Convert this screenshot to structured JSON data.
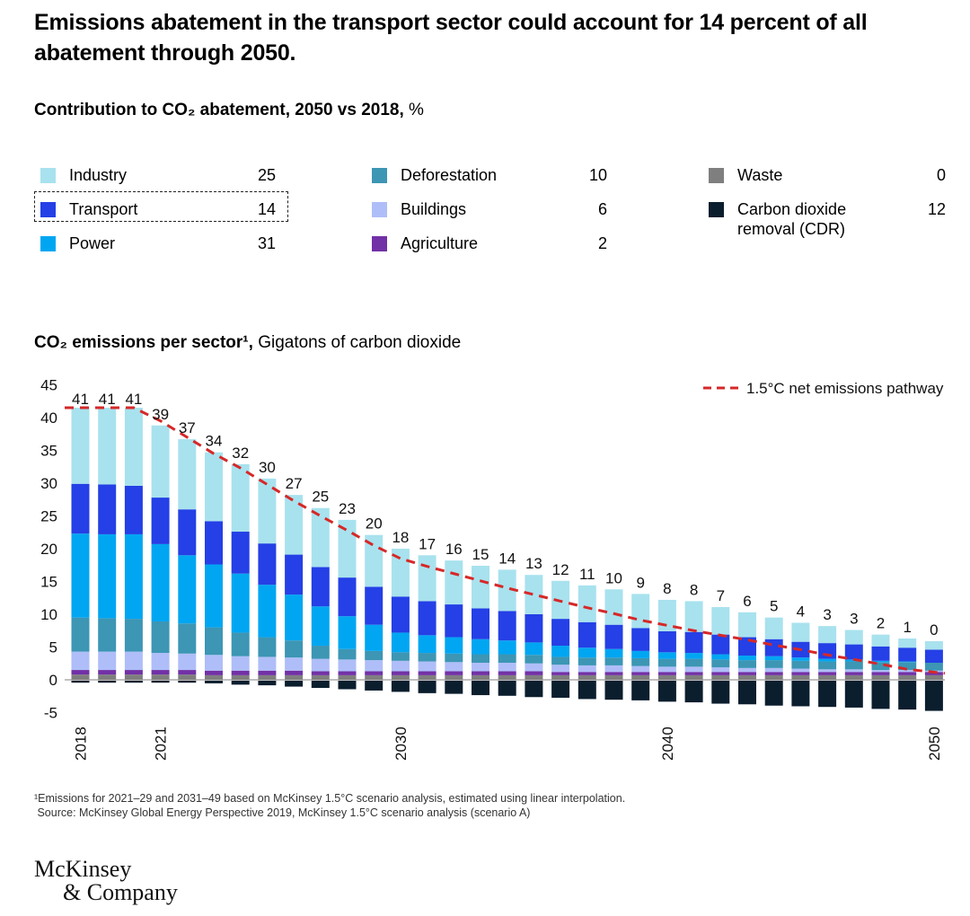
{
  "title": "Emissions abatement in the transport sector could account for 14 percent of all abatement through 2050.",
  "subtitle": {
    "bold": "Contribution to CO₂ abatement, 2050 vs 2018,",
    "unit": " %"
  },
  "legend": [
    {
      "label": "Industry",
      "value": "25",
      "color": "#a8e2ee"
    },
    {
      "label": "Transport",
      "value": "14",
      "color": "#2440e6"
    },
    {
      "label": "Power",
      "value": "31",
      "color": "#00a6f2"
    },
    {
      "label": "Deforestation",
      "value": "10",
      "color": "#3c96b4"
    },
    {
      "label": "Buildings",
      "value": "6",
      "color": "#afbef8"
    },
    {
      "label": "Agriculture",
      "value": "2",
      "color": "#7231a6"
    },
    {
      "label": "Waste",
      "value": "0",
      "color": "#7f7f7f"
    },
    {
      "label": "Carbon dioxide removal (CDR)",
      "value": "12",
      "color": "#0b1e2e"
    }
  ],
  "chart_subtitle": {
    "bold": "CO₂ emissions per sector¹,",
    "unit": " Gigatons of carbon dioxide"
  },
  "chart_data": {
    "type": "bar",
    "stacked": true,
    "title": "CO₂ emissions per sector¹, Gigatons of carbon dioxide",
    "categories": [
      "2018",
      "2019",
      "2020",
      "2021",
      "2022",
      "2023",
      "2024",
      "2025",
      "2026",
      "2027",
      "2028",
      "2029",
      "2030",
      "2031",
      "2032",
      "2033",
      "2034",
      "2035",
      "2036",
      "2037",
      "2038",
      "2039",
      "2040",
      "2041",
      "2042",
      "2043",
      "2044",
      "2045",
      "2046",
      "2047",
      "2048",
      "2049",
      "2050"
    ],
    "x_tick_labels": [
      "2018",
      "2021",
      "2030",
      "2040",
      "2050"
    ],
    "ylim": [
      -5,
      45
    ],
    "y_ticks": [
      -5,
      0,
      5,
      10,
      15,
      20,
      25,
      30,
      35,
      40,
      45
    ],
    "totals": [
      "41",
      "41",
      "41",
      "39",
      "37",
      "34",
      "32",
      "30",
      "27",
      "25",
      "23",
      "20",
      "18",
      "17",
      "16",
      "15",
      "14",
      "13",
      "12",
      "11",
      "10",
      "9",
      "8",
      "8",
      "7",
      "6",
      "5",
      "4",
      "3",
      "3",
      "2",
      "1",
      "0"
    ],
    "series": [
      {
        "name": "Waste",
        "values": [
          0.8,
          0.8,
          0.8,
          0.8,
          0.8,
          0.7,
          0.7,
          0.7,
          0.7,
          0.7,
          0.7,
          0.7,
          0.7,
          0.7,
          0.7,
          0.7,
          0.7,
          0.7,
          0.7,
          0.7,
          0.7,
          0.7,
          0.7,
          0.7,
          0.7,
          0.7,
          0.7,
          0.7,
          0.7,
          0.7,
          0.7,
          0.7,
          0.7
        ]
      },
      {
        "name": "Agriculture",
        "values": [
          0.7,
          0.7,
          0.7,
          0.7,
          0.7,
          0.7,
          0.7,
          0.7,
          0.7,
          0.6,
          0.6,
          0.6,
          0.6,
          0.6,
          0.6,
          0.6,
          0.6,
          0.6,
          0.5,
          0.5,
          0.5,
          0.5,
          0.5,
          0.5,
          0.5,
          0.5,
          0.5,
          0.5,
          0.5,
          0.5,
          0.5,
          0.5,
          0.5
        ]
      },
      {
        "name": "Buildings",
        "values": [
          2.8,
          2.8,
          2.8,
          2.6,
          2.5,
          2.4,
          2.2,
          2.1,
          2.0,
          1.9,
          1.8,
          1.7,
          1.6,
          1.5,
          1.4,
          1.3,
          1.3,
          1.2,
          1.1,
          1.0,
          1.0,
          0.9,
          0.8,
          0.8,
          0.7,
          0.6,
          0.6,
          0.5,
          0.4,
          0.4,
          0.3,
          0.3,
          0.2
        ]
      },
      {
        "name": "Deforestation",
        "values": [
          5.2,
          5.1,
          5.0,
          4.8,
          4.6,
          4.2,
          3.6,
          3.0,
          2.6,
          2.0,
          1.6,
          1.4,
          1.3,
          1.3,
          1.3,
          1.3,
          1.3,
          1.3,
          1.2,
          1.2,
          1.2,
          1.2,
          1.2,
          1.2,
          1.2,
          1.2,
          1.2,
          1.2,
          1.2,
          1.2,
          1.2,
          1.2,
          1.2
        ]
      },
      {
        "name": "Power",
        "values": [
          12.8,
          12.8,
          12.9,
          11.8,
          10.4,
          9.6,
          9.0,
          8.0,
          7.0,
          6.0,
          5.0,
          4.0,
          3.0,
          2.7,
          2.5,
          2.3,
          2.1,
          1.9,
          1.7,
          1.5,
          1.3,
          1.1,
          1.0,
          0.9,
          0.8,
          0.7,
          0.6,
          0.5,
          0.4,
          0.3,
          0.2,
          0.1,
          0.0
        ]
      },
      {
        "name": "Transport",
        "values": [
          7.6,
          7.6,
          7.4,
          7.1,
          7.0,
          6.6,
          6.4,
          6.3,
          6.1,
          6.0,
          5.9,
          5.8,
          5.5,
          5.2,
          5.0,
          4.7,
          4.5,
          4.3,
          4.1,
          3.9,
          3.7,
          3.5,
          3.2,
          3.2,
          3.0,
          2.8,
          2.6,
          2.4,
          2.4,
          2.3,
          2.2,
          2.1,
          2.0
        ]
      },
      {
        "name": "Industry",
        "values": [
          11.6,
          11.7,
          11.9,
          11.0,
          10.7,
          10.5,
          10.3,
          9.9,
          9.1,
          9.0,
          8.8,
          7.9,
          7.3,
          7.0,
          6.7,
          6.5,
          6.3,
          6.0,
          5.8,
          5.6,
          5.4,
          5.2,
          4.8,
          4.7,
          4.2,
          3.8,
          3.3,
          2.9,
          2.6,
          2.2,
          1.8,
          1.4,
          1.3
        ]
      },
      {
        "name": "Carbon dioxide removal (CDR)",
        "negative": true,
        "values": [
          -0.3,
          -0.3,
          -0.3,
          -0.3,
          -0.3,
          -0.4,
          -0.6,
          -0.7,
          -0.9,
          -1.1,
          -1.3,
          -1.5,
          -1.7,
          -1.9,
          -2.0,
          -2.2,
          -2.3,
          -2.5,
          -2.6,
          -2.8,
          -2.9,
          -3.0,
          -3.2,
          -3.3,
          -3.5,
          -3.6,
          -3.8,
          -3.9,
          -4.0,
          -4.1,
          -4.3,
          -4.4,
          -4.6
        ]
      }
    ],
    "pathway": {
      "name": "1.5°C net emissions pathway",
      "color": "#d62828",
      "values": [
        41.5,
        41.5,
        41.5,
        39.5,
        37.0,
        34.5,
        32.3,
        29.8,
        27.3,
        25.0,
        22.8,
        20.5,
        18.5,
        17.3,
        16.2,
        15.1,
        14.0,
        13.0,
        12.0,
        11.0,
        10.1,
        9.1,
        8.3,
        7.5,
        6.8,
        6.1,
        5.3,
        4.6,
        3.8,
        3.1,
        2.4,
        1.6,
        1.0
      ]
    }
  },
  "footnote": [
    "¹Emissions for 2021–29 and 2031–49 based on McKinsey 1.5°C scenario analysis, estimated using linear interpolation.",
    " Source: McKinsey Global Energy Perspective 2019, McKinsey 1.5°C scenario analysis (scenario A)"
  ],
  "logo": {
    "line1": "McKinsey",
    "line2": "& Company"
  }
}
